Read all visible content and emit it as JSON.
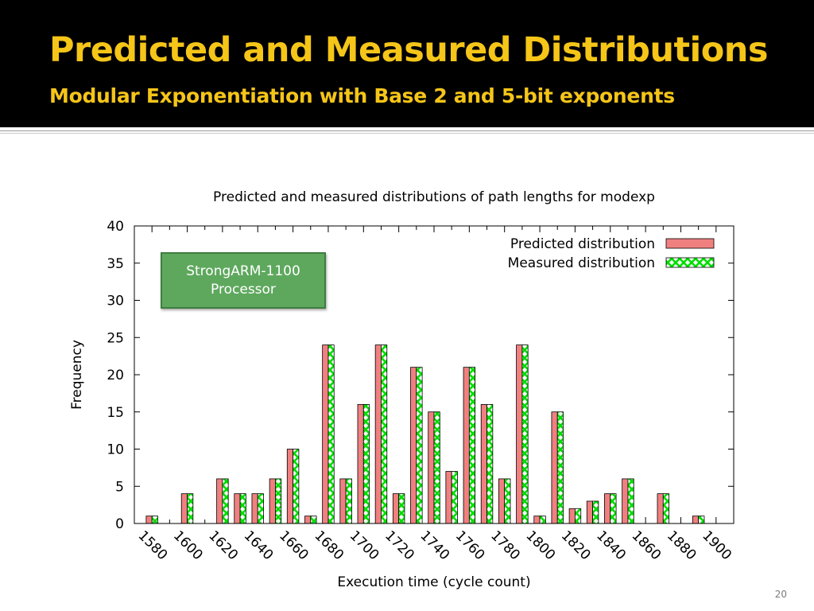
{
  "slide": {
    "title": "Predicted and Measured Distributions",
    "subtitle": "Modular Exponentiation with Base 2 and 5-bit exponents",
    "number": "20"
  },
  "annotation": {
    "line1": "StrongARM-1100",
    "line2": "Processor",
    "color": "#5ea85e"
  },
  "chart_data": {
    "type": "bar",
    "title": "Predicted and measured distributions of path lengths for modexp",
    "xlabel": "Execution time (cycle count)",
    "ylabel": "Frequency",
    "x_tick_labels": [
      "1580",
      "1600",
      "1620",
      "1640",
      "1660",
      "1680",
      "1700",
      "1720",
      "1740",
      "1760",
      "1780",
      "1800",
      "1820",
      "1840",
      "1860",
      "1880",
      "1900"
    ],
    "y_tick_labels": [
      "0",
      "5",
      "10",
      "15",
      "20",
      "25",
      "30",
      "35",
      "40"
    ],
    "xlim": [
      1570,
      1910
    ],
    "ylim": [
      0,
      40
    ],
    "x": [
      1580,
      1590,
      1600,
      1610,
      1620,
      1630,
      1640,
      1650,
      1660,
      1670,
      1680,
      1690,
      1700,
      1710,
      1720,
      1730,
      1740,
      1750,
      1760,
      1770,
      1780,
      1790,
      1800,
      1810,
      1820,
      1830,
      1840,
      1850,
      1860,
      1870,
      1880,
      1890,
      1900
    ],
    "series": [
      {
        "name": "Predicted distribution",
        "color": "#f08080",
        "pattern": "solid",
        "values": [
          1,
          0,
          4,
          0,
          6,
          4,
          4,
          6,
          10,
          1,
          24,
          6,
          16,
          24,
          4,
          21,
          15,
          7,
          21,
          16,
          6,
          24,
          1,
          15,
          2,
          3,
          4,
          6,
          0,
          4,
          0,
          1,
          0
        ]
      },
      {
        "name": "Measured distribution",
        "color": "#00dd00",
        "pattern": "crosshatch",
        "values": [
          1,
          0,
          4,
          0,
          6,
          4,
          4,
          6,
          10,
          1,
          24,
          6,
          16,
          24,
          4,
          21,
          15,
          7,
          21,
          16,
          6,
          24,
          1,
          15,
          2,
          3,
          4,
          6,
          0,
          4,
          0,
          1,
          0
        ]
      }
    ],
    "legend_position": "top-right",
    "grid": false
  }
}
